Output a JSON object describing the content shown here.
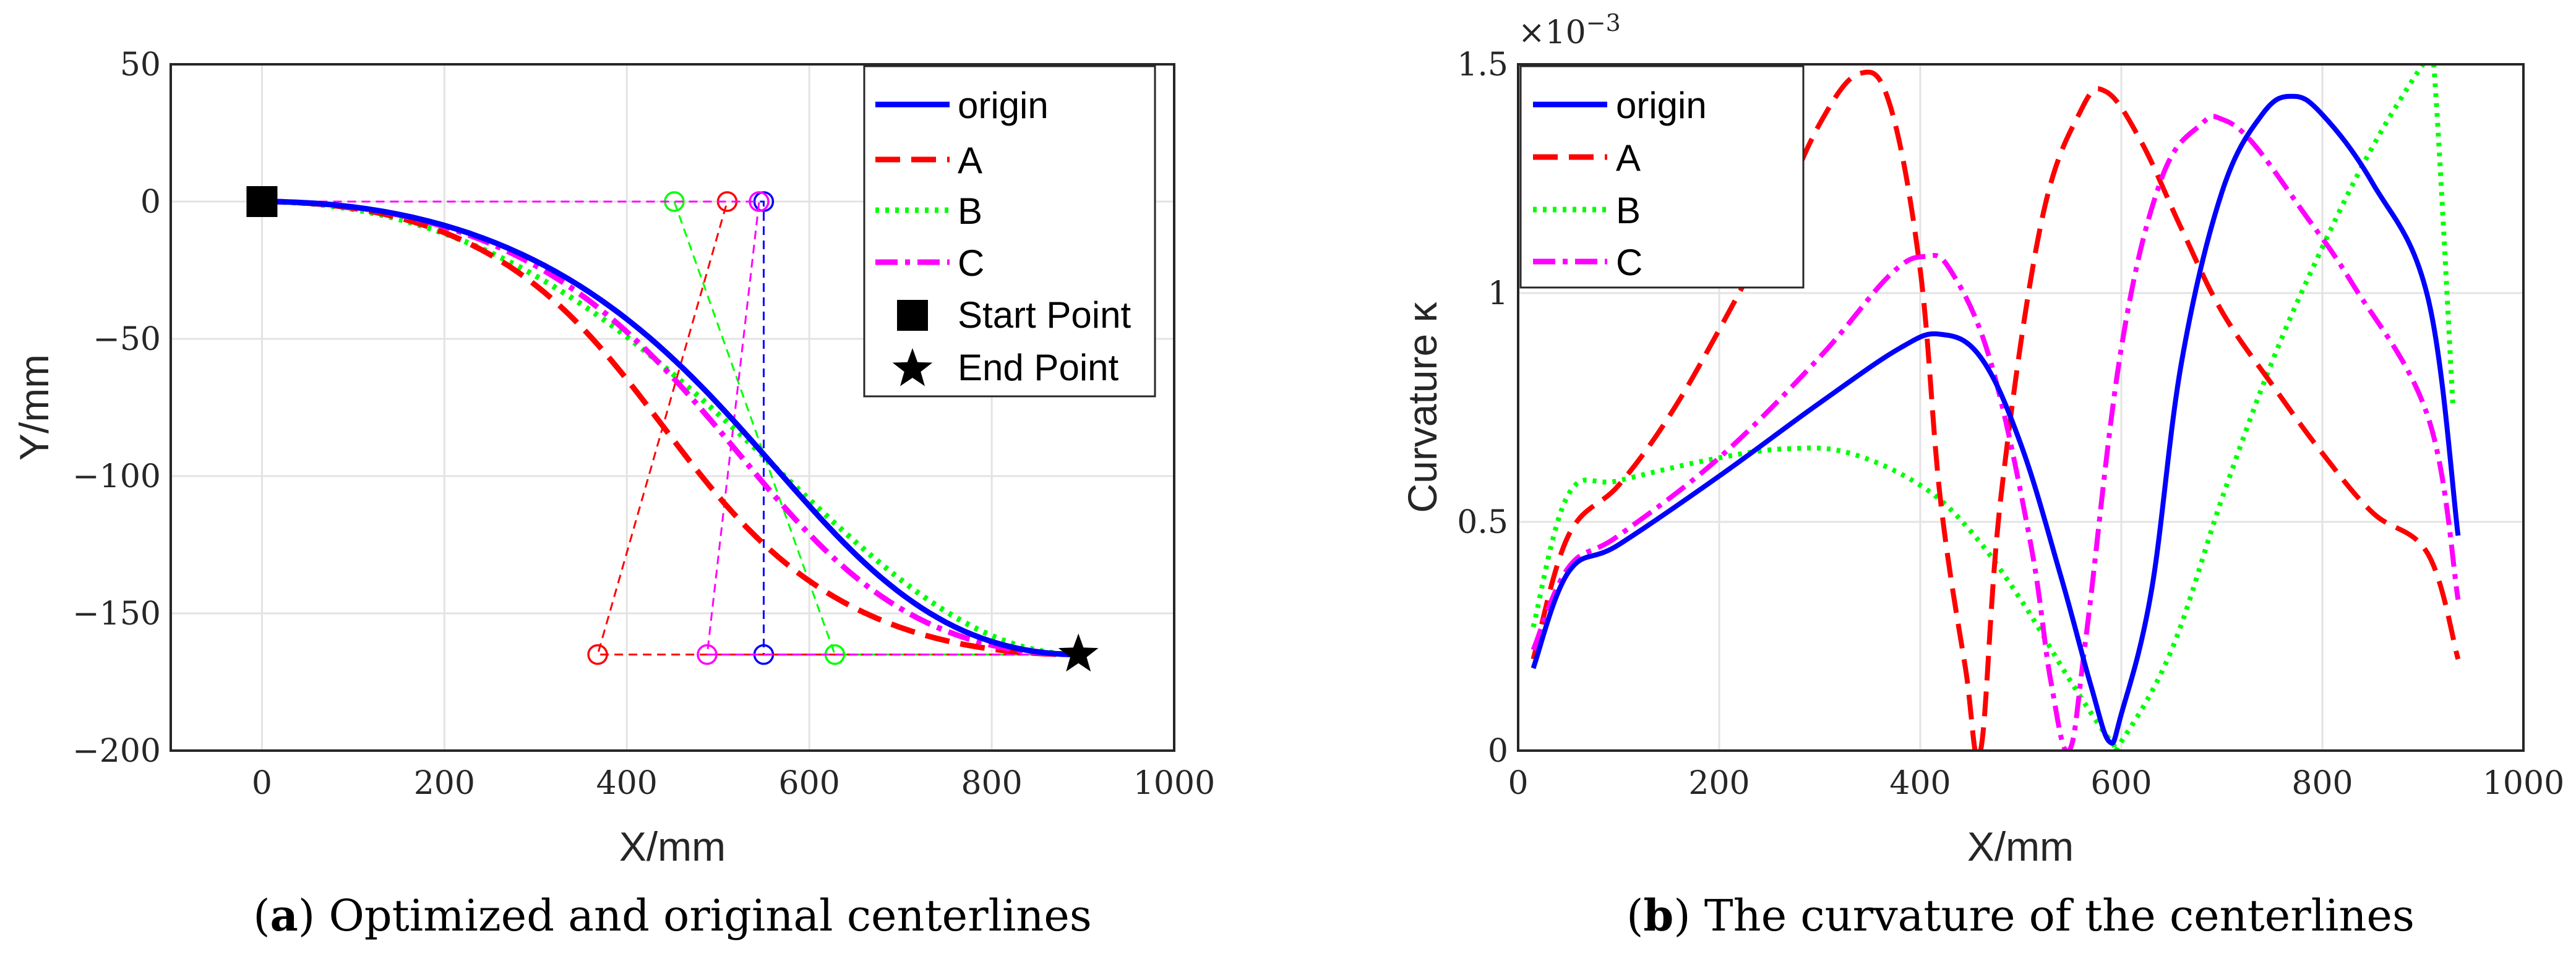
{
  "chart_data": [
    {
      "type": "line",
      "caption": {
        "label": "a",
        "text": ") Optimized and original centerlines"
      },
      "xlabel": "X/mm",
      "ylabel": "Y/mm",
      "xlim": [
        -100,
        1000
      ],
      "ylim": [
        -200,
        50
      ],
      "xticks": [
        0,
        200,
        400,
        600,
        800,
        1000
      ],
      "yticks": [
        50,
        0,
        -50,
        -100,
        -150,
        -200
      ],
      "xtick_labels": [
        "0",
        "200",
        "400",
        "600",
        "800",
        "1000"
      ],
      "ytick_labels": [
        "50",
        "0",
        "−50",
        "−100",
        "−150",
        "−200"
      ],
      "grid": true,
      "legend_position": "top-right",
      "series": [
        {
          "name": "origin",
          "color": "#0000ff",
          "style": "solid",
          "control_points": [
            [
              0,
              0
            ],
            [
              550,
              0
            ],
            [
              550,
              -165
            ],
            [
              895,
              -165
            ]
          ]
        },
        {
          "name": "A",
          "color": "#ff0000",
          "style": "dashed",
          "control_points": [
            [
              0,
              0
            ],
            [
              510,
              0
            ],
            [
              368,
              -165
            ],
            [
              895,
              -165
            ]
          ]
        },
        {
          "name": "B",
          "color": "#00ff00",
          "style": "dotted",
          "control_points": [
            [
              0,
              0
            ],
            [
              452,
              0
            ],
            [
              628,
              -165
            ],
            [
              895,
              -165
            ]
          ]
        },
        {
          "name": "C",
          "color": "#ff00ff",
          "style": "dashdot",
          "control_points": [
            [
              0,
              0
            ],
            [
              545,
              0
            ],
            [
              488,
              -165
            ],
            [
              895,
              -165
            ]
          ]
        }
      ],
      "markers": [
        {
          "name": "Start Point",
          "symbol": "square",
          "x": 0,
          "y": 0
        },
        {
          "name": "End Point",
          "symbol": "star",
          "x": 895,
          "y": -165
        }
      ]
    },
    {
      "type": "line",
      "caption": {
        "label": "b",
        "text": ") The curvature of the centerlines"
      },
      "xlabel": "X/mm",
      "ylabel": "Curvature κ",
      "exponent_label": "×10",
      "exponent_power": "−3",
      "xlim": [
        0,
        1000
      ],
      "ylim": [
        0,
        1.5
      ],
      "xticks": [
        0,
        200,
        400,
        600,
        800,
        1000
      ],
      "yticks": [
        0,
        0.5,
        1,
        1.5
      ],
      "xtick_labels": [
        "0",
        "200",
        "400",
        "600",
        "800",
        "1000"
      ],
      "ytick_labels": [
        "0",
        "0.5",
        "1",
        "1.5"
      ],
      "grid": true,
      "legend_position": "top-left",
      "series": [
        {
          "name": "origin",
          "color": "#0000ff",
          "style": "solid",
          "x": [
            15,
            50,
            100,
            200,
            300,
            380,
            420,
            460,
            500,
            540,
            570,
            588,
            600,
            630,
            660,
            700,
            740,
            770,
            800,
            850,
            905,
            935
          ],
          "y": [
            0.18,
            0.39,
            0.45,
            0.6,
            0.76,
            0.88,
            0.91,
            0.86,
            0.67,
            0.38,
            0.14,
            0.02,
            0.08,
            0.35,
            0.85,
            1.22,
            1.39,
            1.43,
            1.39,
            1.24,
            0.99,
            0.47
          ]
        },
        {
          "name": "A",
          "color": "#ff0000",
          "style": "dashed",
          "x": [
            15,
            50,
            100,
            150,
            200,
            250,
            300,
            340,
            370,
            400,
            420,
            445,
            460,
            480,
            520,
            560,
            585,
            620,
            660,
            700,
            750,
            800,
            850,
            905,
            935
          ],
          "y": [
            0.2,
            0.47,
            0.58,
            0.73,
            0.92,
            1.13,
            1.37,
            1.48,
            1.41,
            1.05,
            0.55,
            0.18,
            0.0,
            0.55,
            1.15,
            1.4,
            1.44,
            1.33,
            1.14,
            0.96,
            0.8,
            0.65,
            0.52,
            0.43,
            0.2
          ]
        },
        {
          "name": "B",
          "color": "#00ff00",
          "style": "dotted",
          "x": [
            15,
            50,
            100,
            200,
            270,
            330,
            400,
            450,
            500,
            550,
            590,
            600,
            650,
            700,
            750,
            800,
            850,
            900,
            910,
            930
          ],
          "y": [
            0.27,
            0.56,
            0.59,
            0.64,
            0.66,
            0.65,
            0.58,
            0.48,
            0.33,
            0.15,
            0.02,
            0.02,
            0.22,
            0.55,
            0.85,
            1.1,
            1.32,
            1.5,
            1.52,
            0.75
          ]
        },
        {
          "name": "C",
          "color": "#ff00ff",
          "style": "dashdot",
          "x": [
            15,
            50,
            100,
            200,
            300,
            370,
            405,
            430,
            470,
            510,
            530,
            548,
            565,
            600,
            640,
            680,
            700,
            730,
            780,
            830,
            905,
            935
          ],
          "y": [
            0.22,
            0.4,
            0.47,
            0.64,
            0.86,
            1.04,
            1.08,
            1.05,
            0.85,
            0.45,
            0.15,
            0.0,
            0.25,
            0.88,
            1.25,
            1.37,
            1.38,
            1.33,
            1.18,
            1.02,
            0.73,
            0.33
          ]
        }
      ]
    }
  ]
}
